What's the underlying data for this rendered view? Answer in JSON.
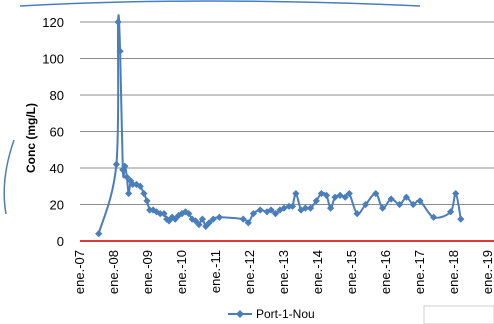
{
  "chart_data": {
    "type": "line",
    "title": "",
    "xlabel": "",
    "ylabel": "Conc (mg/L)",
    "ylim": [
      0,
      120
    ],
    "yticks": [
      0,
      20,
      40,
      60,
      80,
      100,
      120
    ],
    "grid": true,
    "legend_position": "bottom",
    "x_tick_labels": [
      "ene.-07",
      "ene.-08",
      "ene.-09",
      "ene.-10",
      "ene.-11",
      "ene.-12",
      "ene.-13",
      "ene.-14",
      "ene.-15",
      "ene.-16",
      "ene.-17",
      "ene.-18",
      "ene.-19"
    ],
    "x_tick_dates": [
      2007.0,
      2008.0,
      2009.0,
      2010.0,
      2011.0,
      2012.0,
      2013.0,
      2014.0,
      2015.0,
      2016.0,
      2017.0,
      2018.0,
      2019.0
    ],
    "xlim": [
      2007.0,
      2019.0
    ],
    "series": [
      {
        "name": "Port-1-Nou",
        "color": "#4a7ebb",
        "marker": "diamond",
        "points": [
          [
            2007.55,
            4
          ],
          [
            2008.07,
            42
          ],
          [
            2008.12,
            120
          ],
          [
            2008.18,
            104
          ],
          [
            2008.26,
            39
          ],
          [
            2008.32,
            41
          ],
          [
            2008.38,
            35
          ],
          [
            2008.43,
            26
          ],
          [
            2008.49,
            33
          ],
          [
            2008.55,
            31
          ],
          [
            2008.66,
            31
          ],
          [
            2008.77,
            30
          ],
          [
            2008.88,
            26
          ],
          [
            2008.97,
            22
          ],
          [
            2009.05,
            17
          ],
          [
            2009.15,
            17
          ],
          [
            2009.25,
            16
          ],
          [
            2009.36,
            15
          ],
          [
            2009.47,
            15
          ],
          [
            2009.55,
            12
          ],
          [
            2009.62,
            11
          ],
          [
            2009.71,
            13
          ],
          [
            2009.8,
            12
          ],
          [
            2009.9,
            14
          ],
          [
            2010.0,
            15
          ],
          [
            2010.1,
            16
          ],
          [
            2010.2,
            15
          ],
          [
            2010.3,
            12
          ],
          [
            2010.4,
            11
          ],
          [
            2010.5,
            9
          ],
          [
            2010.6,
            12
          ],
          [
            2010.7,
            8
          ],
          [
            2010.8,
            10
          ],
          [
            2010.92,
            12
          ],
          [
            2011.1,
            13
          ],
          [
            2011.8,
            12
          ],
          [
            2011.95,
            10
          ],
          [
            2012.1,
            15
          ],
          [
            2012.3,
            17
          ],
          [
            2012.5,
            16
          ],
          [
            2012.62,
            17
          ],
          [
            2012.75,
            15
          ],
          [
            2012.88,
            17
          ],
          [
            2013.0,
            18
          ],
          [
            2013.15,
            19
          ],
          [
            2013.25,
            19
          ],
          [
            2013.35,
            26
          ],
          [
            2013.5,
            17
          ],
          [
            2013.63,
            18
          ],
          [
            2013.78,
            18
          ],
          [
            2013.95,
            22
          ],
          [
            2014.1,
            26
          ],
          [
            2014.25,
            25
          ],
          [
            2014.37,
            18
          ],
          [
            2014.5,
            24
          ],
          [
            2014.65,
            25
          ],
          [
            2014.8,
            24
          ],
          [
            2014.92,
            26
          ],
          [
            2015.15,
            15
          ],
          [
            2015.4,
            20
          ],
          [
            2015.7,
            26
          ],
          [
            2015.9,
            18
          ],
          [
            2016.15,
            23
          ],
          [
            2016.4,
            20
          ],
          [
            2016.6,
            24
          ],
          [
            2016.8,
            20
          ],
          [
            2017.0,
            22
          ],
          [
            2017.4,
            13
          ],
          [
            2017.9,
            16
          ],
          [
            2018.05,
            26
          ],
          [
            2018.2,
            12
          ]
        ]
      }
    ],
    "threshold_line": {
      "y": 0,
      "color": "#d93b3b"
    }
  }
}
